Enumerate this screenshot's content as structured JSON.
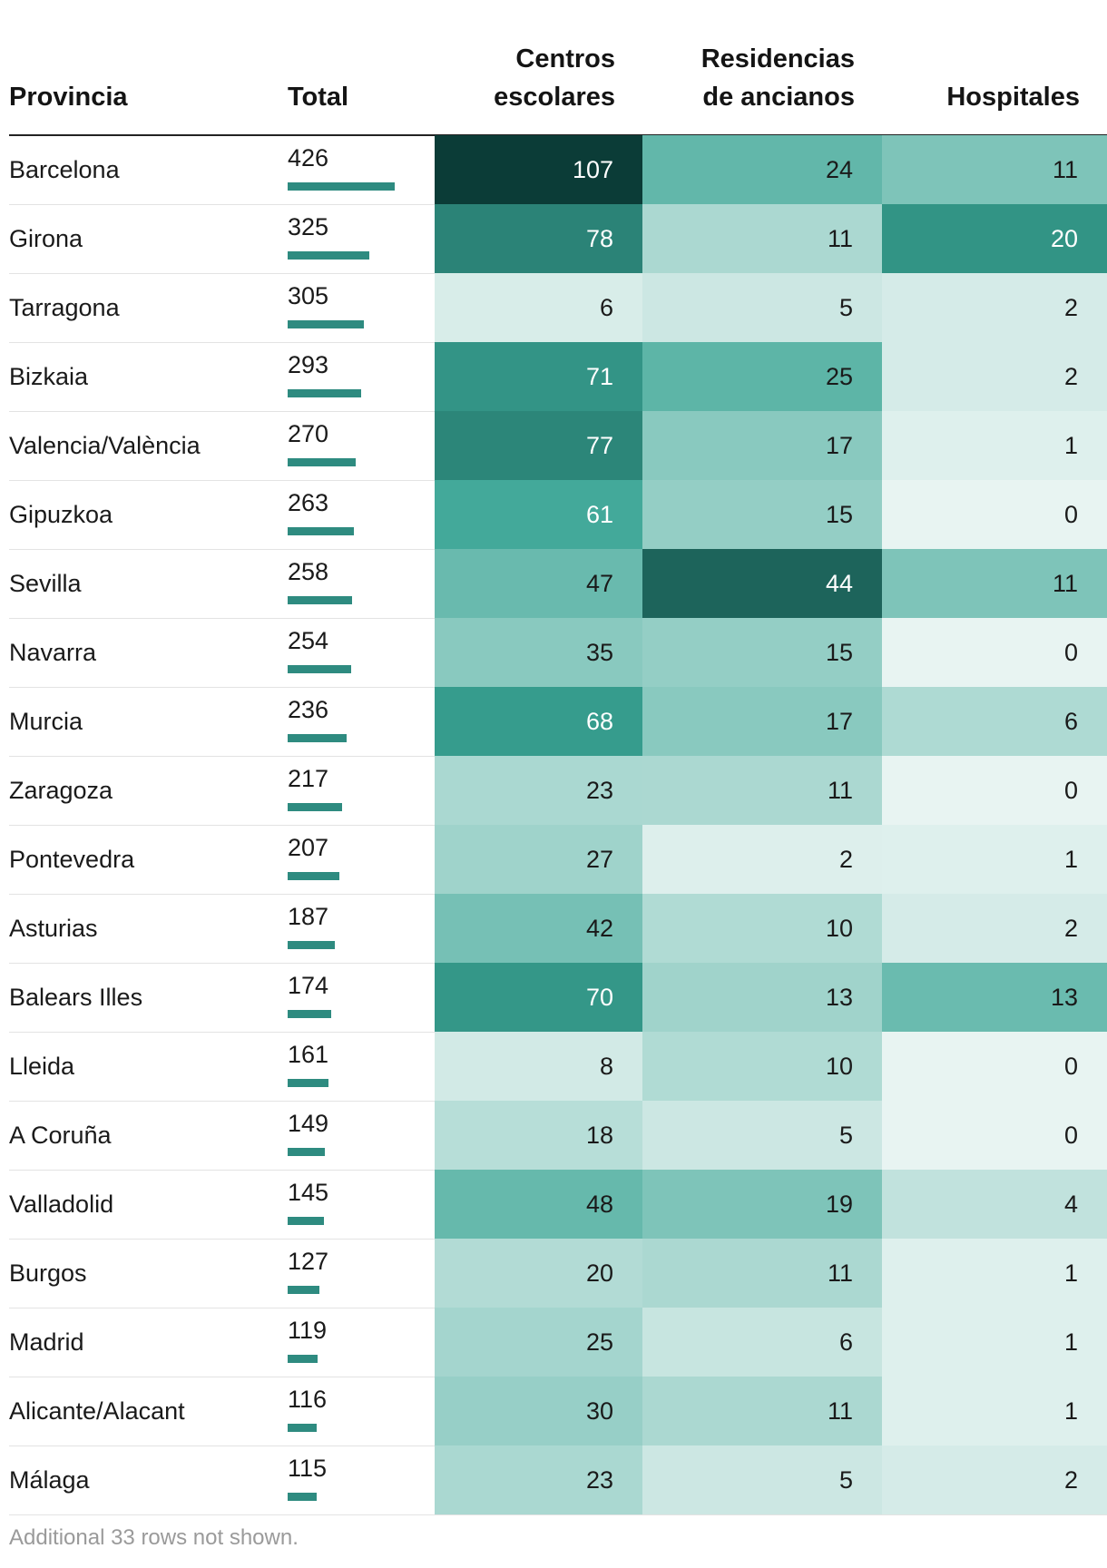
{
  "chart_data": {
    "type": "table",
    "columns": [
      "Provincia",
      "Total",
      "Centros escolares",
      "Residencias de ancianos",
      "Hospitales"
    ],
    "header_lines": {
      "provincia": "Provincia",
      "total": "Total",
      "centros": [
        "Centros",
        "escolares"
      ],
      "residencias": [
        "Residencias",
        "de ancianos"
      ],
      "hospitales": "Hospitales"
    },
    "rows": [
      {
        "provincia": "Barcelona",
        "total": 426,
        "centros": 107,
        "residencias": 24,
        "hospitales": 11
      },
      {
        "provincia": "Girona",
        "total": 325,
        "centros": 78,
        "residencias": 11,
        "hospitales": 20
      },
      {
        "provincia": "Tarragona",
        "total": 305,
        "centros": 6,
        "residencias": 5,
        "hospitales": 2
      },
      {
        "provincia": "Bizkaia",
        "total": 293,
        "centros": 71,
        "residencias": 25,
        "hospitales": 2
      },
      {
        "provincia": "Valencia/València",
        "total": 270,
        "centros": 77,
        "residencias": 17,
        "hospitales": 1
      },
      {
        "provincia": "Gipuzkoa",
        "total": 263,
        "centros": 61,
        "residencias": 15,
        "hospitales": 0
      },
      {
        "provincia": "Sevilla",
        "total": 258,
        "centros": 47,
        "residencias": 44,
        "hospitales": 11
      },
      {
        "provincia": "Navarra",
        "total": 254,
        "centros": 35,
        "residencias": 15,
        "hospitales": 0
      },
      {
        "provincia": "Murcia",
        "total": 236,
        "centros": 68,
        "residencias": 17,
        "hospitales": 6
      },
      {
        "provincia": "Zaragoza",
        "total": 217,
        "centros": 23,
        "residencias": 11,
        "hospitales": 0
      },
      {
        "provincia": "Pontevedra",
        "total": 207,
        "centros": 27,
        "residencias": 2,
        "hospitales": 1
      },
      {
        "provincia": "Asturias",
        "total": 187,
        "centros": 42,
        "residencias": 10,
        "hospitales": 2
      },
      {
        "provincia": "Balears Illes",
        "total": 174,
        "centros": 70,
        "residencias": 13,
        "hospitales": 13
      },
      {
        "provincia": "Lleida",
        "total": 161,
        "centros": 8,
        "residencias": 10,
        "hospitales": 0
      },
      {
        "provincia": "A Coruña",
        "total": 149,
        "centros": 18,
        "residencias": 5,
        "hospitales": 0
      },
      {
        "provincia": "Valladolid",
        "total": 145,
        "centros": 48,
        "residencias": 19,
        "hospitales": 4
      },
      {
        "provincia": "Burgos",
        "total": 127,
        "centros": 20,
        "residencias": 11,
        "hospitales": 1
      },
      {
        "provincia": "Madrid",
        "total": 119,
        "centros": 25,
        "residencias": 6,
        "hospitales": 1
      },
      {
        "provincia": "Alicante/Alacant",
        "total": 116,
        "centros": 30,
        "residencias": 11,
        "hospitales": 1
      },
      {
        "provincia": "Málaga",
        "total": 115,
        "centros": 23,
        "residencias": 5,
        "hospitales": 2
      }
    ],
    "footnote": "Additional 33 rows not shown.",
    "colors": {
      "bar": "#2e8b80",
      "heat_low": "#e8f4f2",
      "heat_mid": "#3aa595",
      "heat_high": "#0b3c37"
    }
  }
}
